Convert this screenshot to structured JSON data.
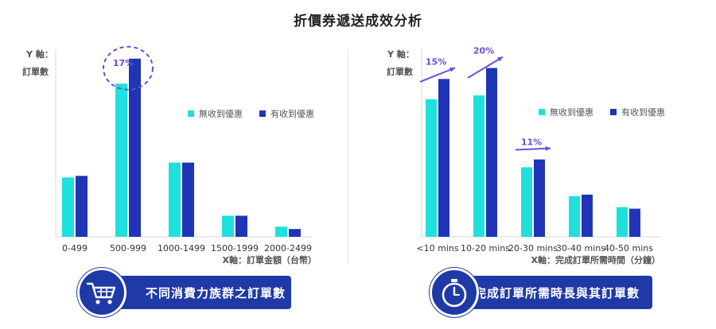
{
  "page_title": "折價券遞送成效分析",
  "colors": {
    "no_coupon": "#1ee0dc",
    "coupon": "#1f35b5",
    "accent": "#6a4de0",
    "banner": "#1f3aa6"
  },
  "chart_data": [
    {
      "type": "bar",
      "y_axis_label_line1": "Y 軸：",
      "y_axis_label_line2": "訂單數",
      "xlabel": "X軸：訂單金額（台幣）",
      "categories": [
        "0-499",
        "500-999",
        "1000-1499",
        "1500-1999",
        "2000-2499"
      ],
      "series": [
        {
          "name": "無收到優惠",
          "values": [
            76,
            196,
            95,
            27,
            13
          ]
        },
        {
          "name": "有收到優惠",
          "values": [
            78,
            228,
            95,
            27,
            10
          ]
        }
      ],
      "ylim": [
        0,
        240
      ],
      "grid": false,
      "legend": "right",
      "annotations": [
        {
          "category": "500-999",
          "text": "17%"
        }
      ]
    },
    {
      "type": "bar",
      "y_axis_label_line1": "Y 軸：",
      "y_axis_label_line2": "訂單數",
      "xlabel": "X軸：完成訂單所需時間（分鐘）",
      "categories": [
        "<10 mins",
        "10-20 mins",
        "20-30 mins",
        "30-40 mins",
        "40-50 mins"
      ],
      "series": [
        {
          "name": "無收到優惠",
          "values": [
            176,
            181,
            89,
            52,
            38
          ]
        },
        {
          "name": "有收到優惠",
          "values": [
            202,
            216,
            99,
            54,
            36
          ]
        }
      ],
      "ylim": [
        0,
        240
      ],
      "grid": false,
      "legend": "right",
      "annotations": [
        {
          "category": "<10 mins",
          "text": "15%"
        },
        {
          "category": "10-20 mins",
          "text": "20%"
        },
        {
          "category": "20-30 mins",
          "text": "11%"
        }
      ]
    }
  ],
  "banners": {
    "left": {
      "label": "不同消費力族群之訂單數",
      "icon": "shopping-cart-icon"
    },
    "right": {
      "label": "完成訂單所需時長與其訂單數",
      "icon": "stopwatch-icon"
    }
  }
}
